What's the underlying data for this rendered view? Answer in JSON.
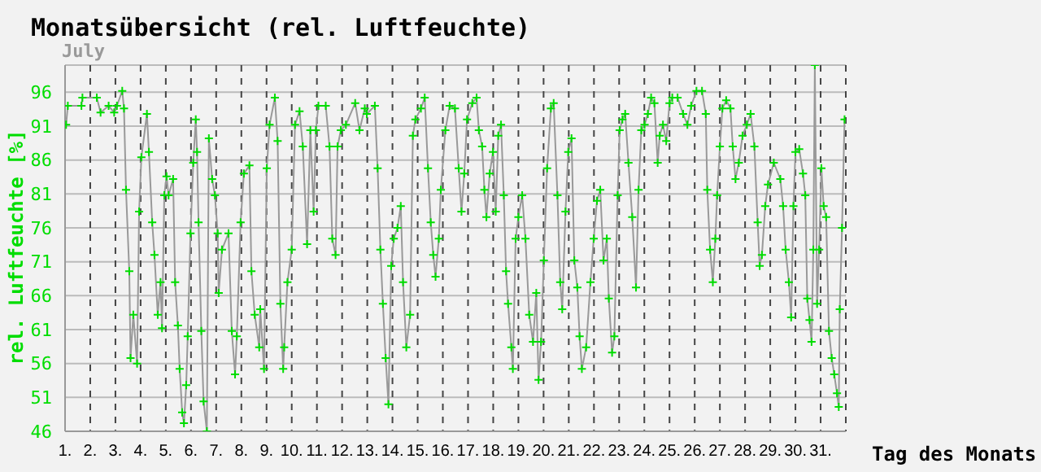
{
  "chart_data": {
    "type": "line",
    "title": "Monatsübersicht (rel. Luftfeuchte)",
    "subtitle": "July",
    "xlabel": "Tag des Monats",
    "ylabel": "rel. Luftfeuchte [%]",
    "x": [
      1.04,
      1.11,
      1.65,
      1.69,
      2.26,
      2.41,
      2.73,
      2.95,
      3.06,
      3.27,
      3.34,
      3.42,
      3.55,
      3.6,
      3.71,
      3.86,
      3.94,
      4.03,
      4.25,
      4.33,
      4.46,
      4.55,
      4.68,
      4.79,
      4.85,
      4.94,
      5.03,
      5.11,
      5.29,
      5.37,
      5.48,
      5.55,
      5.65,
      5.72,
      5.81,
      5.87,
      5.98,
      6.09,
      6.19,
      6.24,
      6.3,
      6.41,
      6.5,
      6.63,
      6.71,
      6.84,
      6.95,
      7.06,
      7.1,
      7.23,
      7.49,
      7.62,
      7.75,
      7.82,
      7.97,
      8.1,
      8.32,
      8.4,
      8.53,
      8.71,
      8.75,
      8.9,
      9.01,
      9.12,
      9.33,
      9.44,
      9.55,
      9.66,
      9.7,
      9.83,
      10.0,
      10.13,
      10.31,
      10.44,
      10.61,
      10.74,
      10.87,
      10.96,
      11.06,
      11.35,
      11.5,
      11.61,
      11.74,
      11.82,
      11.95,
      12.15,
      12.52,
      12.69,
      12.9,
      12.98,
      13.3,
      13.41,
      13.52,
      13.62,
      13.73,
      13.84,
      13.95,
      14.05,
      14.2,
      14.33,
      14.42,
      14.55,
      14.7,
      14.81,
      14.91,
      15.13,
      15.28,
      15.41,
      15.52,
      15.62,
      15.71,
      15.84,
      15.92,
      16.1,
      16.27,
      16.48,
      16.63,
      16.74,
      16.85,
      16.96,
      17.17,
      17.34,
      17.43,
      17.56,
      17.65,
      17.73,
      17.86,
      17.99,
      18.1,
      18.2,
      18.31,
      18.42,
      18.51,
      18.59,
      18.72,
      18.78,
      18.89,
      19.0,
      19.15,
      19.28,
      19.43,
      19.58,
      19.71,
      19.8,
      19.9,
      20.01,
      20.14,
      20.29,
      20.4,
      20.55,
      20.66,
      20.74,
      20.87,
      20.98,
      21.11,
      21.22,
      21.34,
      21.43,
      21.52,
      21.69,
      21.86,
      21.99,
      22.12,
      22.25,
      22.38,
      22.51,
      22.59,
      22.72,
      22.81,
      22.94,
      23.02,
      23.13,
      23.24,
      23.37,
      23.52,
      23.67,
      23.77,
      23.88,
      24.01,
      24.14,
      24.27,
      24.4,
      24.53,
      24.61,
      24.74,
      24.87,
      25.0,
      25.11,
      25.32,
      25.54,
      25.71,
      25.86,
      26.07,
      26.29,
      26.44,
      26.5,
      26.61,
      26.72,
      26.82,
      26.89,
      27.0,
      27.1,
      27.25,
      27.42,
      27.51,
      27.62,
      27.75,
      27.9,
      28.07,
      28.22,
      28.37,
      28.5,
      28.58,
      28.67,
      28.8,
      28.91,
      29.14,
      29.4,
      29.51,
      29.61,
      29.74,
      29.83,
      29.92,
      30.0,
      30.15,
      30.3,
      30.39,
      30.47,
      30.56,
      30.64,
      30.71,
      30.77,
      30.86,
      30.94,
      31.03,
      31.12,
      31.22,
      31.33,
      31.44,
      31.54,
      31.65,
      31.72,
      31.76,
      31.85,
      31.95
    ],
    "series": [
      {
        "color": "#999999",
        "values": [
          91.2,
          94,
          94,
          95.2,
          95.2,
          93,
          94,
          93,
          94,
          96.2,
          93.6,
          81.6,
          69.6,
          56.8,
          63.2,
          56,
          78.4,
          86.4,
          92.8,
          87.2,
          76.8,
          72,
          63.2,
          68,
          61.2,
          80.8,
          83.6,
          80.8,
          83.2,
          68,
          61.6,
          55.2,
          48.8,
          47.2,
          52.8,
          60,
          75.2,
          85.6,
          92,
          87.2,
          76.8,
          60.8,
          50.4,
          46,
          89.2,
          83.2,
          80.8,
          75.2,
          66.4,
          72.8,
          75.2,
          60.8,
          54.4,
          60,
          76.8,
          84,
          85.2,
          69.6,
          63.2,
          58.4,
          64,
          55.2,
          84.8,
          91.2,
          95.2,
          88.8,
          64.8,
          55.2,
          58.4,
          68,
          72.8,
          91.2,
          93.2,
          88,
          73.6,
          90.4,
          78.4,
          90.4,
          94,
          94,
          88,
          74.4,
          72,
          88,
          90.4,
          91.2,
          94.4,
          90.4,
          93.6,
          92.8,
          94,
          84.8,
          72.8,
          64.8,
          56.8,
          50,
          70.4,
          74.4,
          76,
          79.2,
          68,
          58.4,
          63.2,
          89.6,
          92,
          93.6,
          95.2,
          84.8,
          76.8,
          72,
          68.8,
          74.4,
          81.6,
          90.4,
          94,
          93.6,
          84.8,
          78.4,
          84,
          92,
          94.4,
          95.2,
          90.4,
          88,
          81.6,
          77.6,
          84,
          87.2,
          78.4,
          89.6,
          91.2,
          80.8,
          69.6,
          64.8,
          58.4,
          55.2,
          74.4,
          77.6,
          80.8,
          74.4,
          63.2,
          59.2,
          66.4,
          53.6,
          59.2,
          71.2,
          84.8,
          93.6,
          94.4,
          80.8,
          68,
          64,
          78.4,
          87.2,
          89.2,
          71.2,
          67.2,
          60,
          55.2,
          58.4,
          68,
          74.4,
          80,
          81.6,
          71.2,
          74.4,
          65.6,
          57.6,
          60,
          80.8,
          90.4,
          92,
          92.8,
          85.6,
          77.6,
          67.2,
          81.6,
          90.4,
          91.2,
          92.8,
          95.2,
          94.4,
          85.6,
          89.6,
          91.2,
          88.8,
          94.4,
          95.2,
          95.2,
          92.8,
          91.2,
          94,
          96.2,
          96.2,
          92.8,
          81.6,
          72.8,
          68,
          74.4,
          80.8,
          88,
          93.6,
          94.8,
          93.6,
          88,
          83.2,
          85.6,
          89.6,
          91.2,
          92.8,
          88,
          76.8,
          70.4,
          72,
          79.2,
          82.4,
          85.6,
          83.2,
          79.2,
          72.8,
          68,
          62.8,
          79.2,
          87.2,
          87.6,
          84,
          80.8,
          65.6,
          62.4,
          59.2,
          72.8,
          100,
          64.8,
          72.8,
          84.8,
          79.2,
          77.6,
          60.8,
          56.8,
          54.4,
          51.6,
          49.6,
          64,
          76,
          92
        ]
      }
    ],
    "xlim": [
      1,
      32
    ],
    "xticks": [
      {
        "value": 1,
        "label": "1."
      },
      {
        "value": 2,
        "label": "2."
      },
      {
        "value": 3,
        "label": "3."
      },
      {
        "value": 4,
        "label": "4."
      },
      {
        "value": 5,
        "label": "5."
      },
      {
        "value": 6,
        "label": "6."
      },
      {
        "value": 7,
        "label": "7."
      },
      {
        "value": 8,
        "label": "8."
      },
      {
        "value": 9,
        "label": "9."
      },
      {
        "value": 10,
        "label": "10."
      },
      {
        "value": 11,
        "label": "11."
      },
      {
        "value": 12,
        "label": "12."
      },
      {
        "value": 13,
        "label": "13."
      },
      {
        "value": 14,
        "label": "14."
      },
      {
        "value": 15,
        "label": "15."
      },
      {
        "value": 16,
        "label": "16."
      },
      {
        "value": 17,
        "label": "17."
      },
      {
        "value": 18,
        "label": "18."
      },
      {
        "value": 19,
        "label": "19."
      },
      {
        "value": 20,
        "label": "20."
      },
      {
        "value": 21,
        "label": "21."
      },
      {
        "value": 22,
        "label": "22."
      },
      {
        "value": 23,
        "label": "23."
      },
      {
        "value": 24,
        "label": "24."
      },
      {
        "value": 25,
        "label": "25."
      },
      {
        "value": 26,
        "label": "26."
      },
      {
        "value": 27,
        "label": "27."
      },
      {
        "value": 28,
        "label": "28."
      },
      {
        "value": 29,
        "label": "29."
      },
      {
        "value": 30,
        "label": "30."
      },
      {
        "value": 31,
        "label": "31."
      }
    ],
    "ylim": [
      46,
      100
    ],
    "yticks": [
      46,
      51,
      56,
      61,
      66,
      71,
      76,
      81,
      86,
      91,
      96
    ],
    "grid": true,
    "marker": "cross",
    "line_style": "solid"
  }
}
